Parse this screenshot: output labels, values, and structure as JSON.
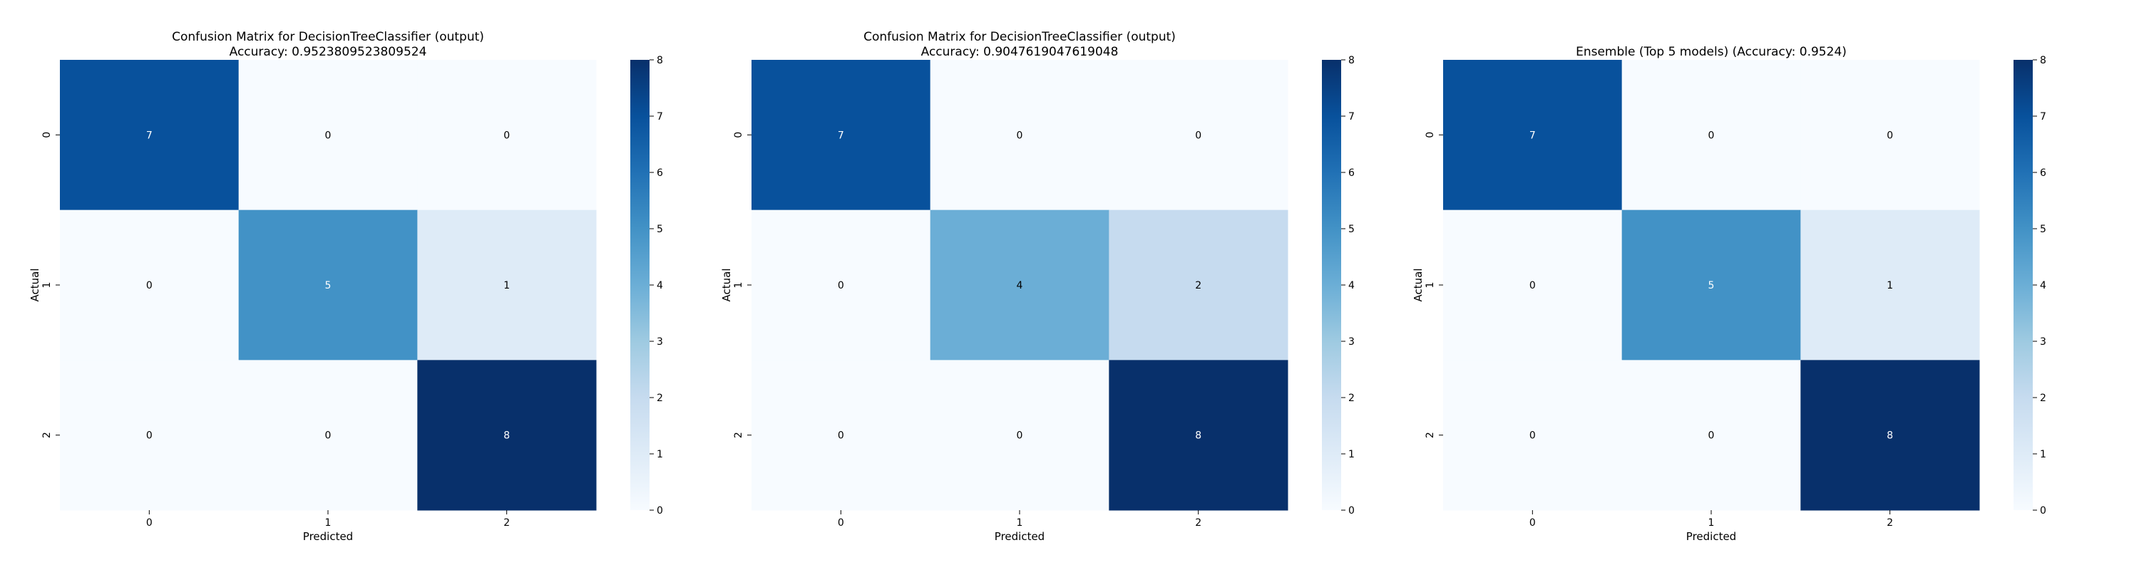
{
  "chart_data": [
    {
      "type": "heatmap",
      "title": [
        "Confusion Matrix for DecisionTreeClassifier (output)",
        "Accuracy: 0.9523809523809524"
      ],
      "xlabel": "Predicted",
      "ylabel": "Actual",
      "x_categories": [
        "0",
        "1",
        "2"
      ],
      "y_categories": [
        "0",
        "1",
        "2"
      ],
      "values": [
        [
          7,
          0,
          0
        ],
        [
          0,
          5,
          1
        ],
        [
          0,
          0,
          8
        ]
      ],
      "colorbar": {
        "range": [
          0,
          8
        ],
        "ticks": [
          "0",
          "1",
          "2",
          "3",
          "4",
          "5",
          "6",
          "7",
          "8"
        ],
        "colormap": "Blues"
      },
      "grid": false
    },
    {
      "type": "heatmap",
      "title": [
        "Confusion Matrix for DecisionTreeClassifier (output)",
        "Accuracy: 0.9047619047619048"
      ],
      "xlabel": "Predicted",
      "ylabel": "Actual",
      "x_categories": [
        "0",
        "1",
        "2"
      ],
      "y_categories": [
        "0",
        "1",
        "2"
      ],
      "values": [
        [
          7,
          0,
          0
        ],
        [
          0,
          4,
          2
        ],
        [
          0,
          0,
          8
        ]
      ],
      "colorbar": {
        "range": [
          0,
          8
        ],
        "ticks": [
          "0",
          "1",
          "2",
          "3",
          "4",
          "5",
          "6",
          "7",
          "8"
        ],
        "colormap": "Blues"
      },
      "grid": false
    },
    {
      "type": "heatmap",
      "title": [
        "Ensemble (Top 5 models) (Accuracy: 0.9524)"
      ],
      "xlabel": "Predicted",
      "ylabel": "Actual",
      "x_categories": [
        "0",
        "1",
        "2"
      ],
      "y_categories": [
        "0",
        "1",
        "2"
      ],
      "values": [
        [
          7,
          0,
          0
        ],
        [
          0,
          5,
          1
        ],
        [
          0,
          0,
          8
        ]
      ],
      "colorbar": {
        "range": [
          0,
          8
        ],
        "ticks": [
          "0",
          "1",
          "2",
          "3",
          "4",
          "5",
          "6",
          "7",
          "8"
        ],
        "colormap": "Blues"
      },
      "grid": false
    }
  ]
}
